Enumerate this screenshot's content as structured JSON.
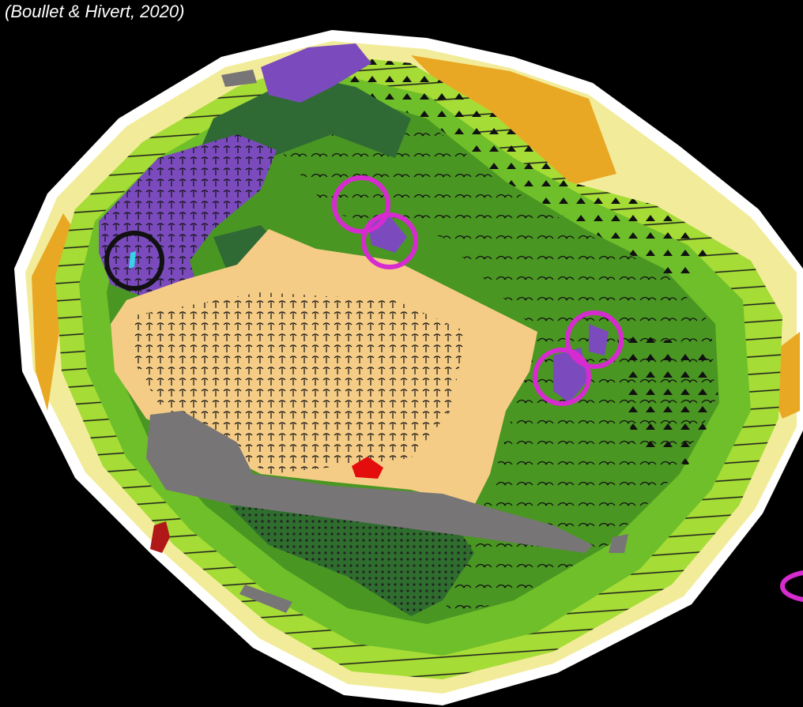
{
  "caption": "(Boullet & Hivert, 2020)"
}
